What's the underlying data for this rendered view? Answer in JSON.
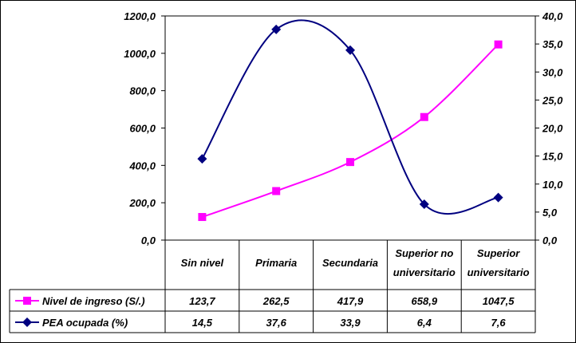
{
  "chart_data": {
    "type": "line",
    "categories": [
      [
        "Sin nivel"
      ],
      [
        "Primaria"
      ],
      [
        "Secundaria"
      ],
      [
        "Superior no",
        "universitario"
      ],
      [
        "Superior",
        "universitario"
      ]
    ],
    "series": [
      {
        "name": "Nivel de ingreso (S/.)",
        "axis": "left",
        "color": "#ff00ff",
        "marker": "square",
        "values": [
          123.7,
          262.5,
          417.9,
          658.9,
          1047.5
        ],
        "labels": [
          "123,7",
          "262,5",
          "417,9",
          "658,9",
          "1047,5"
        ]
      },
      {
        "name": "PEA ocupada (%)",
        "axis": "right",
        "color": "#000080",
        "marker": "diamond",
        "values": [
          14.5,
          37.6,
          33.9,
          6.4,
          7.6
        ],
        "labels": [
          "14,5",
          "37,6",
          "33,9",
          "6,4",
          "7,6"
        ]
      }
    ],
    "y_left": {
      "ylim": [
        0,
        1200
      ],
      "ticks": [
        "0,0",
        "200,0",
        "400,0",
        "600,0",
        "800,0",
        "1000,0",
        "1200,0"
      ]
    },
    "y_right": {
      "ylim": [
        0,
        40
      ],
      "ticks": [
        "0,0",
        "5,0",
        "10,0",
        "15,0",
        "20,0",
        "25,0",
        "30,0",
        "35,0",
        "40,0"
      ]
    },
    "grid": false,
    "legend": "data table below plot"
  }
}
